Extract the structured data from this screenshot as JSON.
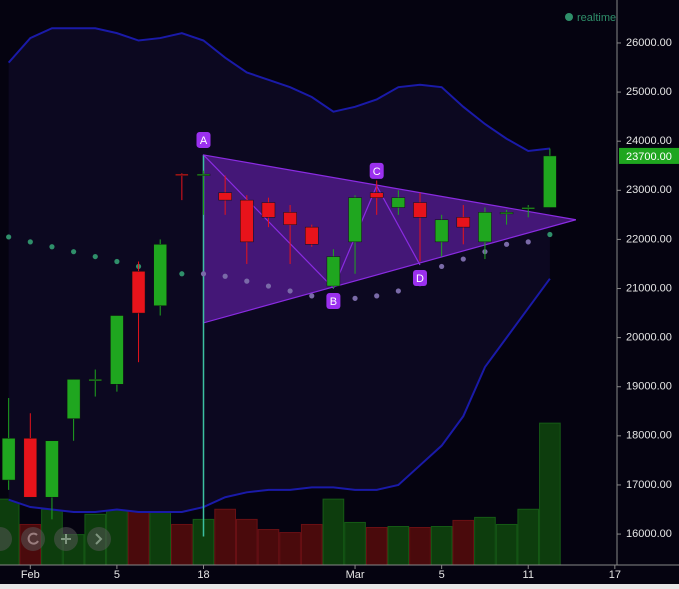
{
  "chart_data": {
    "type": "candlestick",
    "status": "realtime",
    "x": [
      0,
      1,
      2,
      3,
      4,
      5,
      6,
      7,
      8,
      9,
      10,
      11,
      12,
      13,
      14,
      15,
      16,
      17,
      18,
      19,
      20,
      21,
      22,
      23,
      24,
      25
    ],
    "xlim": [
      -0.4,
      28.1
    ],
    "xticks": [
      {
        "value": 1,
        "label": "Feb"
      },
      {
        "value": 5,
        "label": "5"
      },
      {
        "value": 9,
        "label": "18"
      },
      {
        "value": 16,
        "label": "Mar"
      },
      {
        "value": 20,
        "label": "5"
      },
      {
        "value": 24,
        "label": "11"
      },
      {
        "value": 28,
        "label": "17"
      }
    ],
    "ylim": [
      15370,
      26875
    ],
    "yticks": [
      {
        "value": 16000,
        "label": "16000.00"
      },
      {
        "value": 17000,
        "label": "17000.00"
      },
      {
        "value": 18000,
        "label": "18000.00"
      },
      {
        "value": 19000,
        "label": "19000.00"
      },
      {
        "value": 20000,
        "label": "20000.00"
      },
      {
        "value": 21000,
        "label": "21000.00"
      },
      {
        "value": 22000,
        "label": "22000.00"
      },
      {
        "value": 23000,
        "label": "23000.00"
      },
      {
        "value": 24000,
        "label": "24000.00"
      },
      {
        "value": 25000,
        "label": "25000.00"
      },
      {
        "value": 26000,
        "label": "26000.00"
      }
    ],
    "last_price": {
      "value": 23700,
      "label": "23700.00"
    },
    "up_color": "#1fa61f",
    "down_color": "#e8131b",
    "open": [
      17100,
      17950,
      16750,
      18350,
      19150,
      19050,
      21350,
      20650,
      23330,
      23330,
      22950,
      22800,
      22750,
      22550,
      22250,
      21050,
      21950,
      22950,
      22650,
      22750,
      21950,
      22450,
      21950,
      22550,
      22650,
      22650
    ],
    "high": [
      18770,
      18460,
      17900,
      19150,
      19350,
      20450,
      21550,
      22000,
      23350,
      23400,
      23300,
      22900,
      22850,
      22700,
      22300,
      21800,
      22900,
      23200,
      23000,
      22950,
      22500,
      22700,
      22650,
      22600,
      22700,
      23850
    ],
    "low": [
      16900,
      16750,
      16300,
      17900,
      18800,
      18900,
      19500,
      20450,
      22800,
      22500,
      22500,
      21500,
      22250,
      21500,
      21850,
      21000,
      21300,
      22500,
      22500,
      21550,
      21650,
      21900,
      21600,
      22300,
      22450,
      22650
    ],
    "close": [
      17950,
      16750,
      17900,
      19150,
      19150,
      20450,
      20500,
      21900,
      23300,
      23330,
      22800,
      21950,
      22450,
      22300,
      21900,
      21650,
      22850,
      22850,
      22850,
      22450,
      22400,
      22250,
      22550,
      22550,
      22650,
      23700
    ],
    "volume": {
      "ylim": [
        0,
        150
      ],
      "values": [
        65,
        40,
        55,
        30,
        50,
        58,
        60,
        62,
        40,
        45,
        55,
        45,
        35,
        32,
        40,
        65,
        42,
        37,
        38,
        37,
        38,
        44,
        47,
        40,
        55,
        140
      ]
    },
    "bollinger": {
      "color": "#1a1aa8",
      "upper": [
        25600,
        26100,
        26300,
        26300,
        26300,
        26200,
        26050,
        26100,
        26200,
        26050,
        25700,
        25400,
        25250,
        25100,
        24900,
        24600,
        24700,
        24850,
        25100,
        25150,
        25100,
        24700,
        24350,
        24050,
        23800,
        23850
      ],
      "lower": [
        16700,
        16550,
        16500,
        16450,
        16450,
        16500,
        16450,
        16450,
        16450,
        16550,
        16750,
        16850,
        16900,
        16900,
        16950,
        16950,
        16900,
        16900,
        17000,
        17400,
        17800,
        18400,
        19400,
        20000,
        20600,
        21200
      ]
    },
    "sar": {
      "color": "#2f8f6a",
      "values": [
        22050,
        21950,
        21850,
        21750,
        21650,
        21550,
        21450,
        21350,
        21300,
        21300,
        21250,
        21150,
        21050,
        20950,
        20850,
        20800,
        20800,
        20850,
        20950,
        21100,
        21450,
        21600,
        21750,
        21900,
        21950,
        22100
      ]
    },
    "pattern": {
      "color": "#8a2be2",
      "triangle": {
        "x": [
          9,
          9,
          26.2
        ],
        "y": [
          23720,
          20300,
          22400
        ]
      },
      "guide": {
        "x": 9,
        "y": [
          23720,
          15950
        ]
      },
      "points": [
        {
          "label": "A",
          "x": 9,
          "y": 23720
        },
        {
          "label": "B",
          "x": 15,
          "y": 21010
        },
        {
          "label": "C",
          "x": 17,
          "y": 23090
        },
        {
          "label": "D",
          "x": 19,
          "y": 21480
        }
      ]
    }
  }
}
